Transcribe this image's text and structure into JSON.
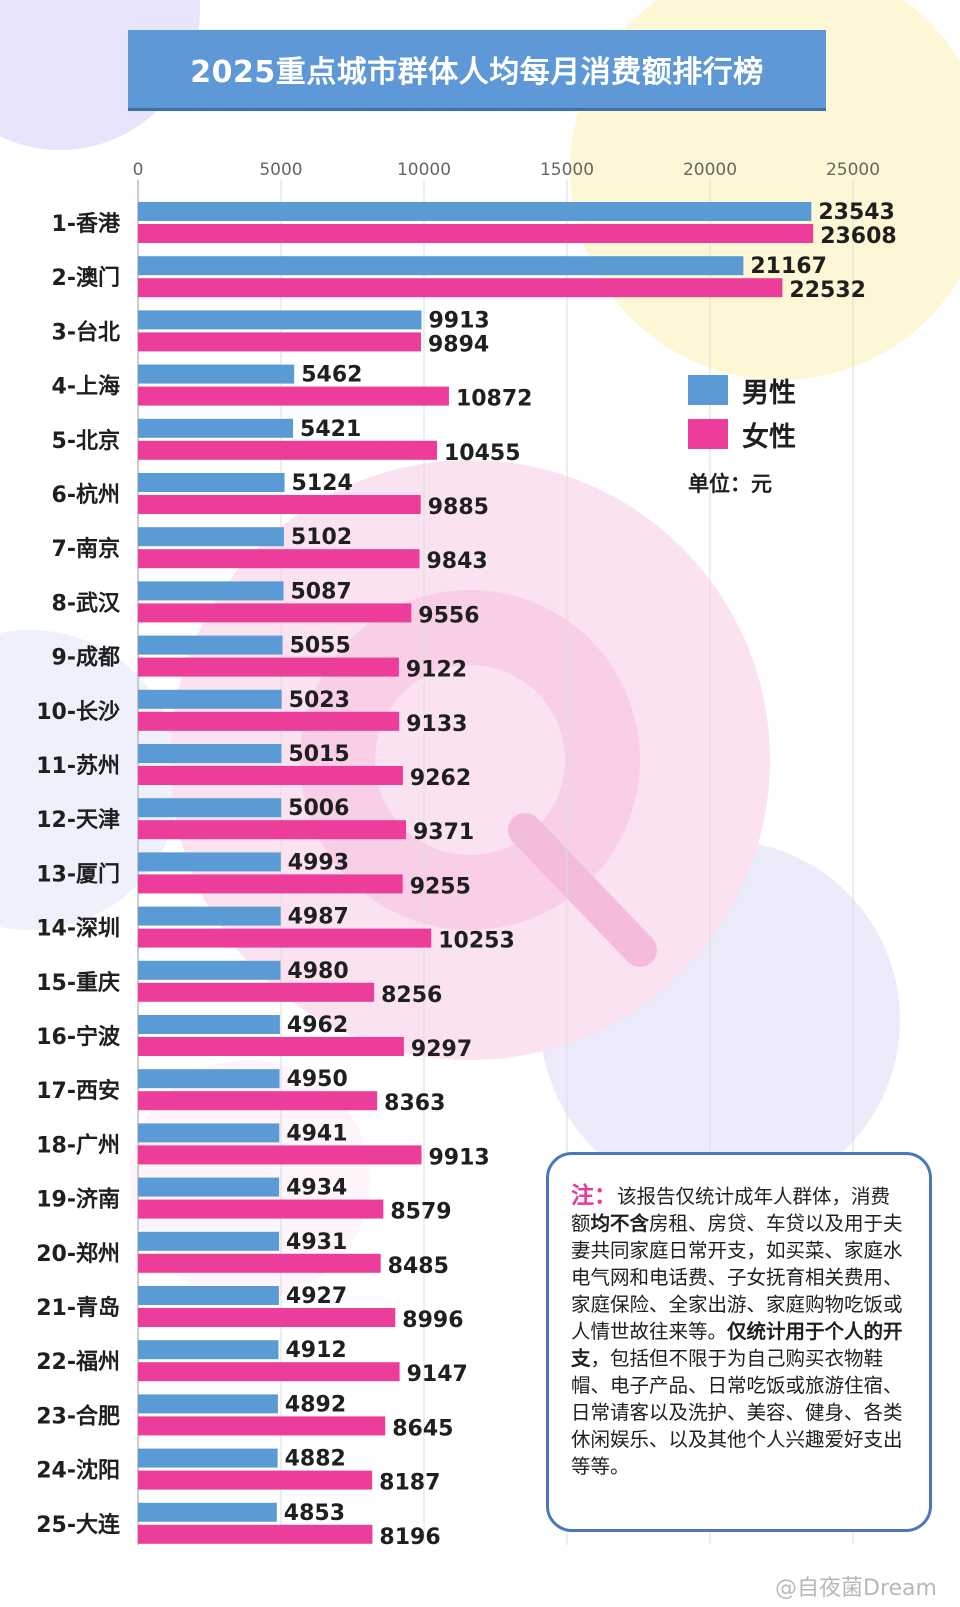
{
  "title": "2025重点城市群体人均每月消费额排行榜",
  "legend": {
    "male_label": "男性",
    "female_label": "女性",
    "unit_label": "单位：元"
  },
  "colors": {
    "male": "#5b9bd5",
    "female": "#ec3d9a",
    "title_bg": "#5f98d6",
    "note_border": "#4a78b8",
    "note_accent": "#e8399a"
  },
  "note": {
    "prefix": "注：",
    "part1": "该报告仅统计成年人群体，消费额",
    "bold1": "均不含",
    "part2": "房租、房贷、车贷以及用于夫妻共同家庭日常开支，如买菜、家庭水电气网和电话费、子女抚育相关费用、家庭保险、全家出游、家庭购物吃饭或人情世故往来等。",
    "bold2": "仅统计用于个人的开支",
    "part3": "，包括但不限于为自己购买衣物鞋帽、电子产品、日常吃饭或旅游住宿、日常请客以及洗护、美容、健身、各类休闲娱乐、以及其他个人兴趣爱好支出等等。"
  },
  "watermark": "@自夜菌Dream",
  "chart_data": {
    "type": "bar",
    "orientation": "horizontal",
    "title": "2025重点城市群体人均每月消费额排行榜",
    "xlim": [
      0,
      25000
    ],
    "x_ticks": [
      "0",
      "5000",
      "10000",
      "15000",
      "20000",
      "25000"
    ],
    "x_tick_values": [
      0,
      5000,
      10000,
      15000,
      20000,
      25000
    ],
    "grid": true,
    "legend_position": "right",
    "categories": [
      "1-香港",
      "2-澳门",
      "3-台北",
      "4-上海",
      "5-北京",
      "6-杭州",
      "7-南京",
      "8-武汉",
      "9-成都",
      "10-长沙",
      "11-苏州",
      "12-天津",
      "13-厦门",
      "14-深圳",
      "15-重庆",
      "16-宁波",
      "17-西安",
      "18-广州",
      "19-济南",
      "20-郑州",
      "21-青岛",
      "22-福州",
      "23-合肥",
      "24-沈阳",
      "25-大连"
    ],
    "series": [
      {
        "name": "男性",
        "values": [
          23543,
          21167,
          9913,
          5462,
          5421,
          5124,
          5102,
          5087,
          5055,
          5023,
          5015,
          5006,
          4993,
          4987,
          4980,
          4962,
          4950,
          4941,
          4934,
          4931,
          4927,
          4912,
          4892,
          4882,
          4853
        ]
      },
      {
        "name": "女性",
        "values": [
          23608,
          22532,
          9894,
          10872,
          10455,
          9885,
          9843,
          9556,
          9122,
          9133,
          9262,
          9371,
          9255,
          10253,
          8256,
          9297,
          8363,
          9913,
          8579,
          8485,
          8996,
          9147,
          8645,
          8187,
          8196
        ]
      }
    ]
  }
}
